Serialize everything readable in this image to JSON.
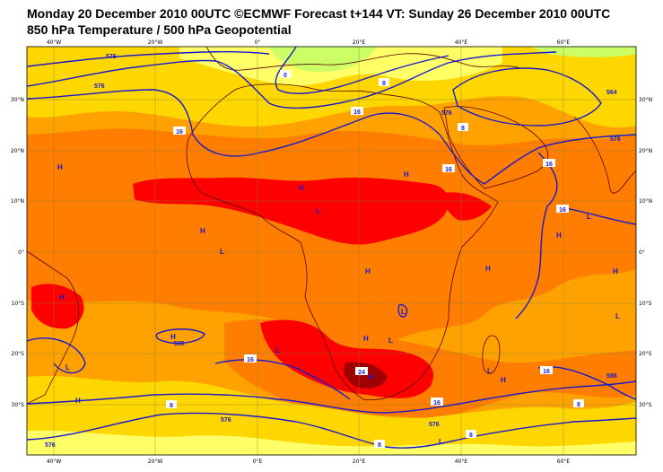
{
  "header": {
    "line1": "Monday 20 December 2010 00UTC ©ECMWF Forecast t+144 VT: Sunday 26 December 2010 00UTC",
    "line2": "850 hPa Temperature / 500 hPa Geopotential"
  },
  "colors": {
    "warm_yellow": "#ffd700",
    "light_orange": "#ffa200",
    "orange": "#ff7d00",
    "red": "#ff0000",
    "dark_red": "#a00000",
    "cool_yellow": "#ffff66",
    "pale_green": "#ccff66",
    "contour": "#1a1acc",
    "coast": "#5a0000"
  },
  "axes": {
    "lon_top": [
      "40°W",
      "20°W",
      "0°",
      "20°E",
      "40°E",
      "60°E"
    ],
    "lon_bottom": [
      "40°W",
      "20°W",
      "0°E",
      "20°E",
      "40°E",
      "60°E"
    ],
    "lat_left": [
      "30°N",
      "20°N",
      "10°N",
      "0°",
      "10°S",
      "20°S",
      "30°S"
    ],
    "lat_right": [
      "30°N",
      "20°N",
      "10°N",
      "0°",
      "10°S",
      "20°S",
      "30°S"
    ]
  },
  "pressure_centers": [
    "H",
    "H",
    "H",
    "H",
    "H",
    "H",
    "H",
    "H",
    "H",
    "H",
    "H",
    "H",
    "H",
    "H",
    "L",
    "L",
    "L",
    "L",
    "L",
    "L",
    "L",
    "L",
    "L",
    "L"
  ],
  "temperature_labels": [
    "0",
    "8",
    "8",
    "16",
    "16",
    "16",
    "16",
    "16",
    "16",
    "16",
    "8",
    "8",
    "8",
    "16",
    "24",
    "8"
  ],
  "geopotential_labels": [
    "576",
    "576",
    "576",
    "564",
    "576",
    "588",
    "576",
    "576",
    "576",
    "588"
  ]
}
